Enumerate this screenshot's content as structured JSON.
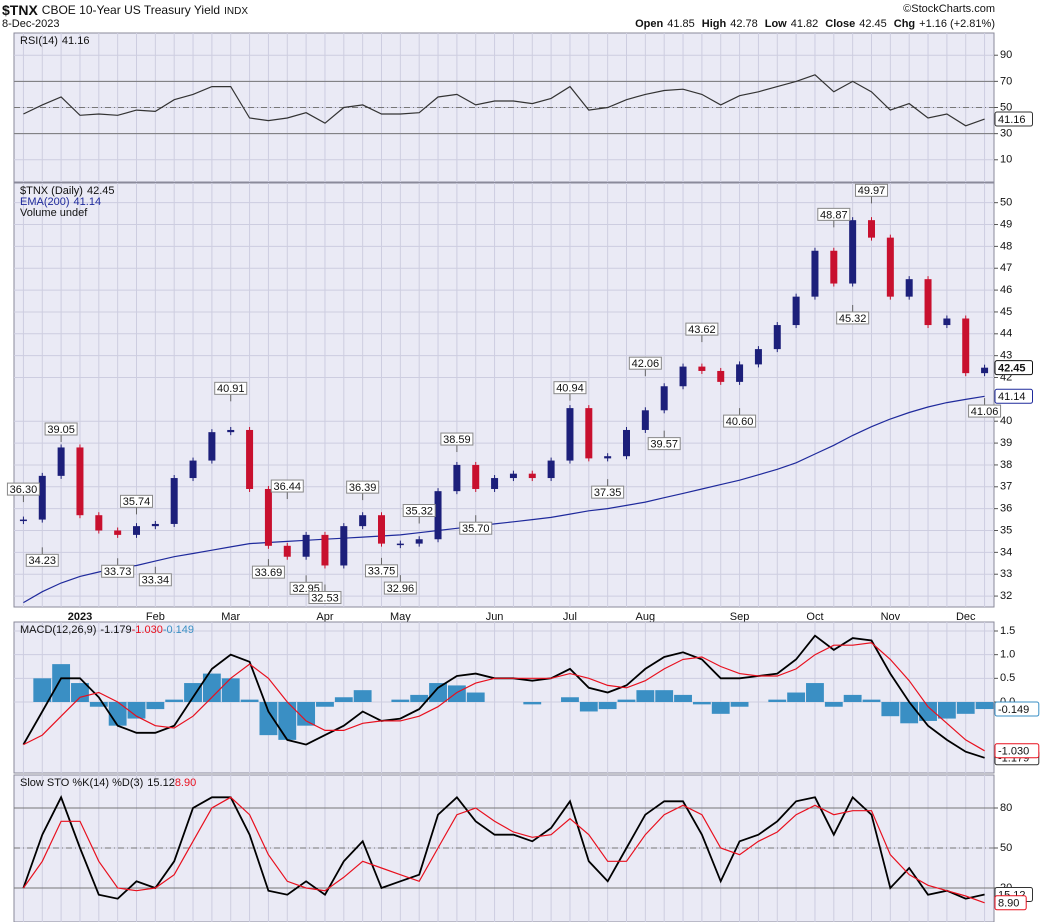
{
  "header": {
    "symbol": "$TNX",
    "name": "CBOE 10-Year US Treasury Yield",
    "exchange": "INDX",
    "date": "8-Dec-2023",
    "source": "©StockCharts.com",
    "quote": [
      {
        "label": "Open",
        "value": 41.85
      },
      {
        "label": "High",
        "value": 42.78
      },
      {
        "label": "Low",
        "value": 41.82
      },
      {
        "label": "Close",
        "value": 42.45
      },
      {
        "label": "Chg",
        "value": "+1.16 (+2.81%)"
      }
    ]
  },
  "chart_data": [
    {
      "type": "line",
      "label": "RSI(14)",
      "ylim": [
        -7,
        107
      ],
      "yticks": [
        90,
        70,
        50,
        30,
        10
      ],
      "ref_lines": [
        70,
        30
      ],
      "mid_line": 50,
      "series": [
        {
          "color": "#333333",
          "last": "41.16",
          "values": [
            45,
            52,
            58,
            44,
            45,
            44,
            48,
            47,
            56,
            60,
            66,
            66,
            42,
            40,
            42,
            46,
            38,
            50,
            52,
            45,
            45,
            46,
            58,
            60,
            52,
            55,
            55,
            53,
            57,
            66,
            48,
            50,
            56,
            60,
            63,
            64,
            60,
            52,
            59,
            62,
            66,
            70,
            75,
            62,
            70,
            62,
            48,
            53,
            42,
            45,
            36,
            41.16
          ]
        }
      ]
    },
    {
      "type": "candlestick",
      "ylim": [
        31.5,
        50.9
      ],
      "yticks": [
        32,
        33,
        34,
        35,
        36,
        37,
        38,
        39,
        40,
        42,
        43,
        44,
        45,
        46,
        47,
        48,
        49,
        50
      ],
      "volume_label": "Volume undef",
      "categories": [
        null,
        null,
        null,
        "2023",
        null,
        null,
        null,
        "Feb",
        null,
        null,
        null,
        "Mar",
        null,
        null,
        null,
        null,
        "Apr",
        null,
        null,
        null,
        "May",
        null,
        null,
        null,
        null,
        "Jun",
        null,
        null,
        null,
        "Jul",
        null,
        null,
        null,
        "Aug",
        null,
        null,
        null,
        null,
        "Sep",
        null,
        null,
        null,
        "Oct",
        null,
        null,
        null,
        "Nov",
        null,
        null,
        null,
        "Dec",
        null
      ],
      "series": [
        {
          "name": "$TNX (Daily)",
          "last": "42.45",
          "up_color": "#1c1f7a",
          "down_color": "#c8102e",
          "values": [
            35.5,
            37.5,
            38.8,
            35.7,
            35.0,
            34.8,
            35.2,
            35.3,
            37.4,
            38.2,
            39.5,
            39.6,
            36.9,
            34.3,
            33.8,
            34.8,
            33.4,
            35.2,
            35.7,
            34.4,
            34.4,
            34.6,
            36.8,
            38.0,
            36.9,
            37.4,
            37.6,
            37.4,
            38.2,
            40.6,
            38.3,
            38.4,
            39.6,
            40.5,
            41.6,
            42.5,
            42.3,
            41.8,
            42.6,
            43.3,
            44.4,
            45.7,
            47.8,
            46.3,
            49.2,
            48.4,
            45.7,
            46.5,
            44.4,
            44.7,
            42.2,
            42.45
          ]
        },
        {
          "name": "EMA(200)",
          "last": "41.14",
          "color": "#1f2a9c",
          "values": [
            31.7,
            32.2,
            32.6,
            32.9,
            33.1,
            33.3,
            33.4,
            33.6,
            33.8,
            33.95,
            34.1,
            34.25,
            34.4,
            34.45,
            34.5,
            34.55,
            34.6,
            34.65,
            34.7,
            34.75,
            34.8,
            34.9,
            35.0,
            35.1,
            35.2,
            35.3,
            35.4,
            35.5,
            35.6,
            35.75,
            35.9,
            36.0,
            36.15,
            36.3,
            36.5,
            36.7,
            36.9,
            37.1,
            37.3,
            37.55,
            37.8,
            38.1,
            38.5,
            38.9,
            39.35,
            39.75,
            40.1,
            40.4,
            40.65,
            40.85,
            41.0,
            41.14
          ]
        }
      ],
      "annotations": [
        {
          "index": 0,
          "value": 36.3,
          "label": "36.30"
        },
        {
          "index": 1,
          "value": 34.23
        },
        {
          "index": 2,
          "value": 39.05
        },
        {
          "index": 5,
          "value": 33.73
        },
        {
          "index": 6,
          "value": 35.74
        },
        {
          "index": 7,
          "value": 33.34
        },
        {
          "index": 11,
          "value": 40.91
        },
        {
          "index": 14,
          "value": 36.44
        },
        {
          "index": 13,
          "value": 33.69
        },
        {
          "index": 15,
          "value": 32.95
        },
        {
          "index": 16,
          "value": 32.53
        },
        {
          "index": 18,
          "value": 36.39
        },
        {
          "index": 19,
          "value": 33.75
        },
        {
          "index": 21,
          "value": 35.32
        },
        {
          "index": 20,
          "value": 32.96
        },
        {
          "index": 23,
          "value": 38.59
        },
        {
          "index": 24,
          "value": 35.7,
          "label": "35.70"
        },
        {
          "index": 29,
          "value": 40.94
        },
        {
          "index": 31,
          "value": 37.35
        },
        {
          "index": 33,
          "value": 42.06
        },
        {
          "index": 34,
          "value": 39.57
        },
        {
          "index": 36,
          "value": 43.62
        },
        {
          "index": 38,
          "value": 40.6,
          "label": "40.60"
        },
        {
          "index": 43,
          "value": 48.87
        },
        {
          "index": 44,
          "value": 45.32
        },
        {
          "index": 45,
          "value": 49.97
        },
        {
          "index": 51,
          "value": 41.06
        }
      ]
    },
    {
      "type": "line",
      "label": "MACD(12,26,9)",
      "ylim": [
        -1.5,
        1.69
      ],
      "yticks": [
        1.5,
        {
          "value": 1,
          "label": "1.0"
        },
        0.5,
        {
          "value": 0,
          "label": "0.0"
        }
      ],
      "series": [
        {
          "color": "#3a8fc4",
          "bars": true,
          "last": "-0.149",
          "values": [
            0,
            0.5,
            0.8,
            0.4,
            -0.1,
            -0.5,
            -0.35,
            -0.15,
            0.05,
            0.4,
            0.6,
            0.5,
            0.05,
            -0.7,
            -0.8,
            -0.5,
            -0.1,
            0.1,
            0.25,
            0,
            0.05,
            0.15,
            0.4,
            0.35,
            0.2,
            0,
            0,
            -0.05,
            0,
            0.1,
            -0.2,
            -0.15,
            0.05,
            0.25,
            0.25,
            0.15,
            -0.05,
            -0.25,
            -0.1,
            0,
            0.05,
            0.2,
            0.4,
            -0.1,
            0.15,
            0.05,
            -0.3,
            -0.45,
            -0.4,
            -0.35,
            -0.25,
            -0.149
          ]
        },
        {
          "color": "#000000",
          "last": "-1.179",
          "values": [
            -0.9,
            -0.2,
            0.5,
            0.5,
            0.1,
            -0.5,
            -0.65,
            -0.65,
            -0.5,
            0.1,
            0.7,
            1.0,
            0.85,
            -0.2,
            -0.8,
            -0.9,
            -0.7,
            -0.5,
            -0.2,
            -0.4,
            -0.35,
            -0.15,
            0.3,
            0.55,
            0.6,
            0.5,
            0.5,
            0.45,
            0.5,
            0.7,
            0.3,
            0.2,
            0.35,
            0.7,
            0.95,
            1.05,
            0.9,
            0.5,
            0.5,
            0.55,
            0.6,
            0.9,
            1.4,
            1.1,
            1.35,
            1.3,
            0.6,
            0.0,
            -0.5,
            -0.8,
            -1.05,
            -1.179
          ]
        },
        {
          "color": "#e8101e",
          "last": "-1.030",
          "values": [
            -0.9,
            -0.7,
            -0.3,
            0.1,
            0.2,
            0.0,
            -0.3,
            -0.5,
            -0.55,
            -0.3,
            0.1,
            0.5,
            0.8,
            0.5,
            0.0,
            -0.4,
            -0.6,
            -0.6,
            -0.45,
            -0.4,
            -0.4,
            -0.3,
            -0.1,
            0.2,
            0.4,
            0.5,
            0.5,
            0.5,
            0.5,
            0.6,
            0.5,
            0.35,
            0.3,
            0.45,
            0.7,
            0.9,
            0.95,
            0.75,
            0.6,
            0.55,
            0.55,
            0.7,
            1.0,
            1.2,
            1.2,
            1.25,
            0.9,
            0.45,
            -0.1,
            -0.45,
            -0.8,
            -1.03
          ]
        }
      ]
    },
    {
      "type": "line",
      "label": "Slow STO %K(14) %D(3)",
      "ylim": [
        -5.5,
        104.75
      ],
      "yticks": [
        80,
        50,
        20
      ],
      "ref_lines": [
        80,
        20
      ],
      "mid_line": 50,
      "series": [
        {
          "color": "#000000",
          "last": "15.12",
          "values": [
            20,
            60,
            88,
            50,
            15,
            12,
            25,
            20,
            40,
            80,
            88,
            88,
            60,
            18,
            15,
            25,
            15,
            40,
            55,
            20,
            25,
            30,
            75,
            88,
            70,
            60,
            60,
            55,
            65,
            85,
            40,
            25,
            50,
            75,
            85,
            85,
            60,
            25,
            55,
            60,
            70,
            85,
            88,
            60,
            88,
            75,
            20,
            35,
            15,
            18,
            12,
            15.12
          ]
        },
        {
          "color": "#e8101e",
          "last": "8.90",
          "values": [
            20,
            40,
            70,
            70,
            40,
            20,
            18,
            20,
            30,
            55,
            80,
            88,
            75,
            45,
            25,
            20,
            18,
            28,
            40,
            35,
            30,
            25,
            50,
            75,
            80,
            70,
            62,
            58,
            60,
            72,
            60,
            40,
            40,
            60,
            75,
            82,
            75,
            50,
            45,
            55,
            62,
            75,
            82,
            75,
            78,
            78,
            45,
            30,
            22,
            18,
            14,
            8.9
          ]
        }
      ]
    }
  ]
}
